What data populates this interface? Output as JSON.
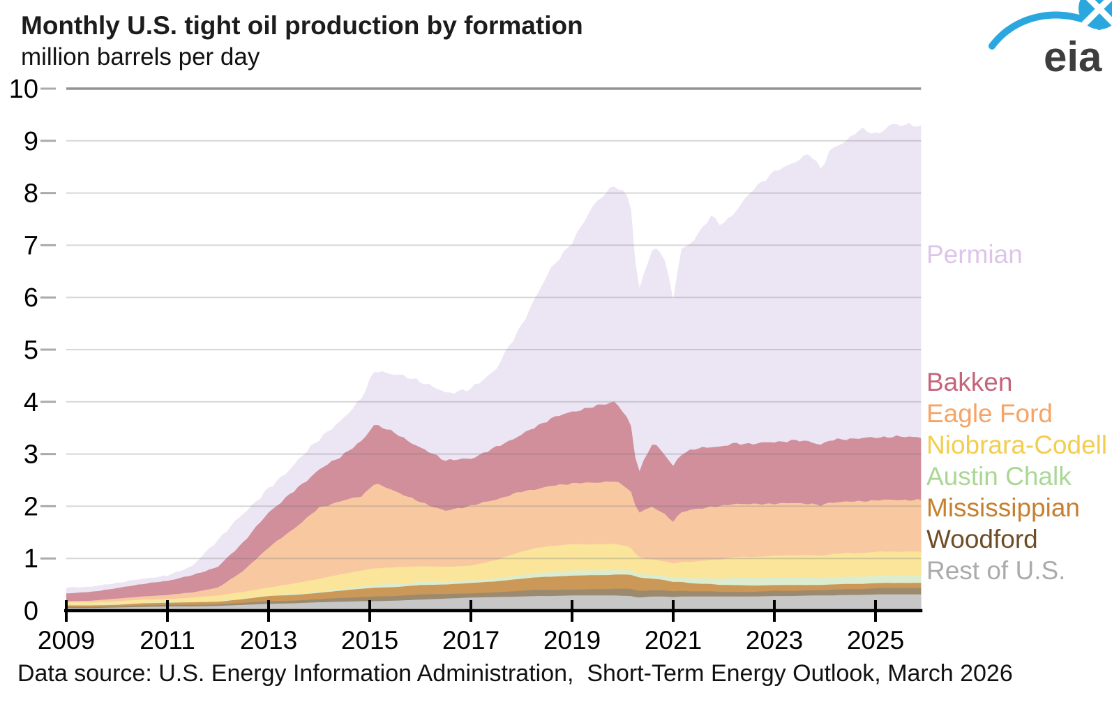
{
  "header": {
    "title": "Monthly U.S. tight oil production by formation",
    "subtitle": "million barrels per day"
  },
  "logo": {
    "text": "eia",
    "blue": "#2AA7DF",
    "text_color": "#3E3E3E"
  },
  "footer": {
    "source": "Data source: U.S. Energy Information Administration,  Short-Term Energy Outlook, March 2026"
  },
  "chart_data": {
    "type": "area",
    "stacked": true,
    "title": "Monthly U.S. tight oil production by formation",
    "ylabel": "million barrels per day",
    "xlabel": "",
    "grid": true,
    "legend_position": "right",
    "ylim": [
      0,
      10
    ],
    "x_range": [
      2009.0,
      2025.9
    ],
    "y_ticks": [
      0,
      1,
      2,
      3,
      4,
      5,
      6,
      7,
      8,
      9,
      10
    ],
    "x_ticks": [
      2009,
      2011,
      2013,
      2015,
      2017,
      2019,
      2021,
      2023,
      2025
    ],
    "x": [
      2009.0,
      2009.5,
      2010.0,
      2010.5,
      2011.0,
      2011.5,
      2012.0,
      2012.5,
      2013.0,
      2013.5,
      2014.0,
      2014.4,
      2014.85,
      2015.1,
      2015.5,
      2016.0,
      2016.5,
      2017.0,
      2017.5,
      2018.0,
      2018.3,
      2018.6,
      2019.0,
      2019.4,
      2019.7,
      2019.85,
      2020.15,
      2020.3,
      2020.45,
      2020.6,
      2020.8,
      2021.0,
      2021.15,
      2021.4,
      2021.75,
      2021.95,
      2022.2,
      2022.6,
      2023.0,
      2023.4,
      2023.7,
      2023.93,
      2024.1,
      2024.4,
      2024.7,
      2025.05,
      2025.3,
      2025.6,
      2025.9
    ],
    "series": [
      {
        "name": "Rest of U.S.",
        "color": "#C7C7C7",
        "label_color": "#ABABAB",
        "values": [
          0.05,
          0.05,
          0.06,
          0.07,
          0.08,
          0.08,
          0.09,
          0.11,
          0.13,
          0.14,
          0.16,
          0.17,
          0.18,
          0.18,
          0.19,
          0.21,
          0.23,
          0.25,
          0.26,
          0.27,
          0.28,
          0.28,
          0.29,
          0.29,
          0.29,
          0.29,
          0.28,
          0.25,
          0.26,
          0.27,
          0.27,
          0.26,
          0.27,
          0.27,
          0.27,
          0.27,
          0.27,
          0.27,
          0.28,
          0.28,
          0.29,
          0.29,
          0.29,
          0.3,
          0.3,
          0.31,
          0.31,
          0.31,
          0.31
        ]
      },
      {
        "name": "Woodford",
        "color": "#9C8A6F",
        "label_color": "#6E4D26",
        "values": [
          0.02,
          0.02,
          0.02,
          0.03,
          0.03,
          0.03,
          0.03,
          0.04,
          0.05,
          0.05,
          0.06,
          0.07,
          0.08,
          0.09,
          0.09,
          0.1,
          0.09,
          0.08,
          0.09,
          0.11,
          0.12,
          0.12,
          0.11,
          0.12,
          0.12,
          0.13,
          0.14,
          0.13,
          0.12,
          0.12,
          0.12,
          0.11,
          0.11,
          0.1,
          0.1,
          0.09,
          0.09,
          0.09,
          0.1,
          0.1,
          0.1,
          0.1,
          0.11,
          0.11,
          0.11,
          0.12,
          0.12,
          0.12,
          0.12
        ]
      },
      {
        "name": "Mississippian",
        "color": "#CB9857",
        "label_color": "#C6802F",
        "values": [
          0.03,
          0.03,
          0.03,
          0.04,
          0.04,
          0.05,
          0.05,
          0.07,
          0.1,
          0.11,
          0.12,
          0.14,
          0.16,
          0.17,
          0.17,
          0.18,
          0.18,
          0.2,
          0.21,
          0.23,
          0.24,
          0.25,
          0.27,
          0.27,
          0.27,
          0.27,
          0.27,
          0.26,
          0.24,
          0.22,
          0.2,
          0.18,
          0.17,
          0.15,
          0.14,
          0.13,
          0.13,
          0.12,
          0.11,
          0.11,
          0.1,
          0.1,
          0.1,
          0.1,
          0.1,
          0.1,
          0.1,
          0.1,
          0.1
        ]
      },
      {
        "name": "Austin Chalk",
        "color": "#DCEDCF",
        "label_color": "#AAD795",
        "values": [
          0.01,
          0.01,
          0.01,
          0.01,
          0.01,
          0.01,
          0.01,
          0.01,
          0.01,
          0.02,
          0.02,
          0.03,
          0.04,
          0.06,
          0.06,
          0.06,
          0.06,
          0.05,
          0.06,
          0.07,
          0.08,
          0.09,
          0.1,
          0.09,
          0.09,
          0.09,
          0.08,
          0.07,
          0.07,
          0.08,
          0.08,
          0.08,
          0.09,
          0.1,
          0.11,
          0.12,
          0.14,
          0.14,
          0.14,
          0.14,
          0.14,
          0.13,
          0.14,
          0.14,
          0.14,
          0.14,
          0.14,
          0.14,
          0.14
        ]
      },
      {
        "name": "Niobrara-Codell",
        "color": "#FAE59A",
        "label_color": "#F3CD4D",
        "values": [
          0.05,
          0.05,
          0.06,
          0.06,
          0.06,
          0.08,
          0.11,
          0.13,
          0.15,
          0.2,
          0.25,
          0.28,
          0.31,
          0.31,
          0.32,
          0.3,
          0.28,
          0.28,
          0.35,
          0.45,
          0.48,
          0.5,
          0.5,
          0.5,
          0.5,
          0.5,
          0.45,
          0.32,
          0.3,
          0.29,
          0.28,
          0.27,
          0.29,
          0.32,
          0.35,
          0.37,
          0.4,
          0.41,
          0.42,
          0.43,
          0.43,
          0.43,
          0.44,
          0.45,
          0.45,
          0.46,
          0.46,
          0.46,
          0.46
        ]
      },
      {
        "name": "Eagle Ford",
        "color": "#F8C9A1",
        "label_color": "#F5A466",
        "values": [
          0.02,
          0.03,
          0.05,
          0.06,
          0.08,
          0.1,
          0.15,
          0.4,
          0.77,
          1.05,
          1.36,
          1.4,
          1.43,
          1.63,
          1.46,
          1.23,
          1.07,
          1.15,
          1.16,
          1.15,
          1.13,
          1.15,
          1.17,
          1.18,
          1.2,
          1.2,
          1.1,
          0.84,
          0.95,
          1.0,
          0.92,
          0.81,
          0.95,
          1.0,
          1.02,
          1.02,
          1.02,
          1.01,
          1.0,
          1.0,
          0.99,
          0.96,
          0.99,
          0.99,
          0.99,
          0.99,
          0.99,
          0.99,
          0.99
        ]
      },
      {
        "name": "Bakken",
        "color": "#D08F9B",
        "label_color": "#C4647A",
        "values": [
          0.15,
          0.17,
          0.2,
          0.24,
          0.27,
          0.33,
          0.4,
          0.55,
          0.67,
          0.72,
          0.73,
          0.85,
          1.05,
          1.14,
          1.11,
          1.04,
          0.97,
          0.9,
          1.0,
          1.09,
          1.2,
          1.3,
          1.37,
          1.45,
          1.5,
          1.53,
          1.3,
          0.74,
          1.0,
          1.25,
          1.15,
          1.06,
          1.12,
          1.15,
          1.15,
          1.14,
          1.15,
          1.16,
          1.18,
          1.2,
          1.19,
          1.17,
          1.19,
          1.2,
          1.21,
          1.2,
          1.21,
          1.21,
          1.21
        ]
      },
      {
        "name": "Permian",
        "color": "#ECE5F4",
        "label_color": "#DCC4EA",
        "values": [
          0.11,
          0.1,
          0.1,
          0.1,
          0.1,
          0.18,
          0.52,
          0.55,
          0.45,
          0.5,
          0.6,
          0.66,
          0.84,
          1.02,
          1.13,
          1.28,
          1.29,
          1.33,
          1.5,
          2.1,
          2.5,
          2.9,
          3.23,
          3.85,
          4.05,
          4.14,
          4.3,
          3.44,
          3.6,
          3.72,
          3.85,
          3.19,
          3.9,
          4.01,
          4.41,
          4.26,
          4.4,
          4.9,
          5.17,
          5.34,
          5.51,
          5.27,
          5.58,
          5.68,
          5.95,
          5.78,
          6.0,
          5.97,
          5.95
        ]
      }
    ]
  }
}
